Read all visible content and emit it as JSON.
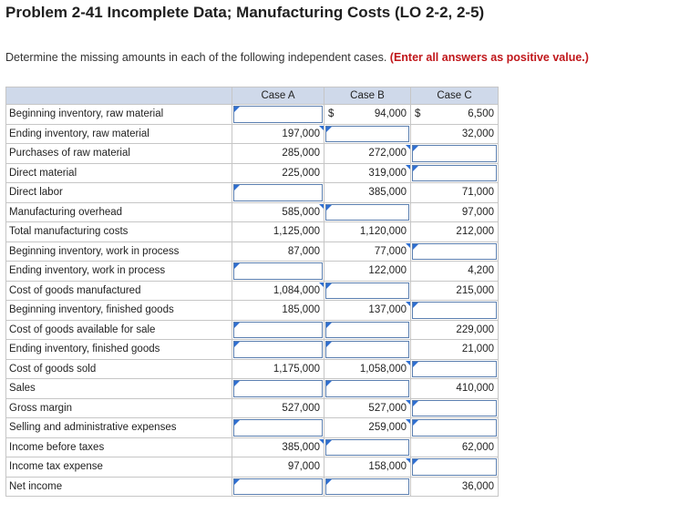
{
  "title": "Problem 2-41 Incomplete Data; Manufacturing Costs (LO 2-2, 2-5)",
  "instructions": {
    "text": "Determine the missing amounts in each of the following independent cases.",
    "emphasis": "(Enter all answers as positive value.)"
  },
  "columns": [
    "Case A",
    "Case B",
    "Case C"
  ],
  "currency_symbol": "$",
  "rows": [
    {
      "label": "Beginning inventory, raw material",
      "a": "",
      "b": "94,000",
      "c": "6,500",
      "a_input": true,
      "b_input": false,
      "c_input": false
    },
    {
      "label": "Ending inventory, raw material",
      "a": "197,000",
      "b": "",
      "c": "32,000",
      "a_input": false,
      "b_input": true,
      "c_input": false
    },
    {
      "label": "Purchases of raw material",
      "a": "285,000",
      "b": "272,000",
      "c": "",
      "a_input": false,
      "b_input": false,
      "c_input": true
    },
    {
      "label": "Direct material",
      "a": "225,000",
      "b": "319,000",
      "c": "",
      "a_input": false,
      "b_input": false,
      "c_input": true
    },
    {
      "label": "Direct labor",
      "a": "",
      "b": "385,000",
      "c": "71,000",
      "a_input": true,
      "b_input": false,
      "c_input": false
    },
    {
      "label": "Manufacturing overhead",
      "a": "585,000",
      "b": "",
      "c": "97,000",
      "a_input": false,
      "b_input": true,
      "c_input": false
    },
    {
      "label": "Total manufacturing costs",
      "a": "1,125,000",
      "b": "1,120,000",
      "c": "212,000",
      "a_input": false,
      "b_input": false,
      "c_input": false
    },
    {
      "label": "Beginning inventory, work in process",
      "a": "87,000",
      "b": "77,000",
      "c": "",
      "a_input": false,
      "b_input": false,
      "c_input": true
    },
    {
      "label": "Ending inventory, work in process",
      "a": "",
      "b": "122,000",
      "c": "4,200",
      "a_input": true,
      "b_input": false,
      "c_input": false
    },
    {
      "label": "Cost of goods manufactured",
      "a": "1,084,000",
      "b": "",
      "c": "215,000",
      "a_input": false,
      "b_input": true,
      "c_input": false
    },
    {
      "label": "Beginning inventory, finished goods",
      "a": "185,000",
      "b": "137,000",
      "c": "",
      "a_input": false,
      "b_input": false,
      "c_input": true
    },
    {
      "label": "Cost of goods available for sale",
      "a": "",
      "b": "",
      "c": "229,000",
      "a_input": true,
      "b_input": true,
      "c_input": false
    },
    {
      "label": "Ending inventory, finished goods",
      "a": "",
      "b": "",
      "c": "21,000",
      "a_input": true,
      "b_input": true,
      "c_input": false
    },
    {
      "label": "Cost of goods sold",
      "a": "1,175,000",
      "b": "1,058,000",
      "c": "",
      "a_input": false,
      "b_input": false,
      "c_input": true
    },
    {
      "label": "Sales",
      "a": "",
      "b": "",
      "c": "410,000",
      "a_input": true,
      "b_input": true,
      "c_input": false
    },
    {
      "label": "Gross margin",
      "a": "527,000",
      "b": "527,000",
      "c": "",
      "a_input": false,
      "b_input": false,
      "c_input": true
    },
    {
      "label": "Selling and administrative expenses",
      "a": "",
      "b": "259,000",
      "c": "",
      "a_input": true,
      "b_input": false,
      "c_input": true
    },
    {
      "label": "Income before taxes",
      "a": "385,000",
      "b": "",
      "c": "62,000",
      "a_input": false,
      "b_input": true,
      "c_input": false
    },
    {
      "label": "Income tax expense",
      "a": "97,000",
      "b": "158,000",
      "c": "",
      "a_input": false,
      "b_input": false,
      "c_input": true
    },
    {
      "label": "Net income",
      "a": "",
      "b": "",
      "c": "36,000",
      "a_input": true,
      "b_input": true,
      "c_input": false
    }
  ],
  "colors": {
    "header_bg": "#cfd9ea",
    "emphasis_text": "#c0161a",
    "input_border": "#5b7fb0",
    "input_flag": "#2f6fd1"
  }
}
